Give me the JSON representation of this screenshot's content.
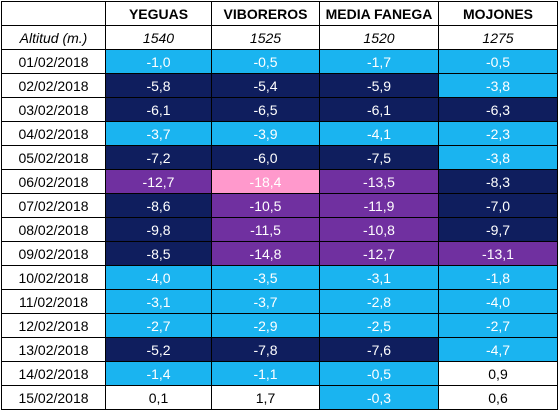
{
  "table": {
    "header": [
      "",
      "YEGUAS",
      "VIBOREROS",
      "MEDIA FANEGA",
      "MOJONES"
    ],
    "altitude": {
      "label": "Altitud (m.)",
      "values": [
        "1540",
        "1525",
        "1520",
        "1275"
      ]
    },
    "legend_colors": {
      "light": "#1ab4f0",
      "navy": "#0f1e5e",
      "purple": "#7030a0",
      "pink": "#ff99cc",
      "white": "#ffffff"
    },
    "rows": [
      {
        "date": "01/02/2018",
        "values": [
          "-1,0",
          "-0,5",
          "-1,7",
          "-0,5"
        ],
        "colors": [
          "light",
          "light",
          "light",
          "light"
        ]
      },
      {
        "date": "02/02/2018",
        "values": [
          "-5,8",
          "-5,4",
          "-5,9",
          "-3,8"
        ],
        "colors": [
          "navy",
          "navy",
          "navy",
          "light"
        ]
      },
      {
        "date": "03/02/2018",
        "values": [
          "-6,1",
          "-6,5",
          "-6,1",
          "-6,3"
        ],
        "colors": [
          "navy",
          "navy",
          "navy",
          "navy"
        ]
      },
      {
        "date": "04/02/2018",
        "values": [
          "-3,7",
          "-3,9",
          "-4,1",
          "-2,3"
        ],
        "colors": [
          "light",
          "light",
          "light",
          "light"
        ]
      },
      {
        "date": "05/02/2018",
        "values": [
          "-7,2",
          "-6,0",
          "-7,5",
          "-3,8"
        ],
        "colors": [
          "navy",
          "navy",
          "navy",
          "light"
        ]
      },
      {
        "date": "06/02/2018",
        "values": [
          "-12,7",
          "-18,4",
          "-13,5",
          "-8,3"
        ],
        "colors": [
          "purple",
          "pink",
          "purple",
          "navy"
        ]
      },
      {
        "date": "07/02/2018",
        "values": [
          "-8,6",
          "-10,5",
          "-11,9",
          "-7,0"
        ],
        "colors": [
          "navy",
          "purple",
          "purple",
          "navy"
        ]
      },
      {
        "date": "08/02/2018",
        "values": [
          "-9,8",
          "-11,5",
          "-10,8",
          "-9,7"
        ],
        "colors": [
          "navy",
          "purple",
          "purple",
          "navy"
        ]
      },
      {
        "date": "09/02/2018",
        "values": [
          "-8,5",
          "-14,8",
          "-12,7",
          "-13,1"
        ],
        "colors": [
          "navy",
          "purple",
          "purple",
          "purple"
        ]
      },
      {
        "date": "10/02/2018",
        "values": [
          "-4,0",
          "-3,5",
          "-3,1",
          "-1,8"
        ],
        "colors": [
          "light",
          "light",
          "light",
          "light"
        ]
      },
      {
        "date": "11/02/2018",
        "values": [
          "-3,1",
          "-3,7",
          "-2,8",
          "-4,0"
        ],
        "colors": [
          "light",
          "light",
          "light",
          "light"
        ]
      },
      {
        "date": "12/02/2018",
        "values": [
          "-2,7",
          "-2,9",
          "-2,5",
          "-2,7"
        ],
        "colors": [
          "light",
          "light",
          "light",
          "light"
        ]
      },
      {
        "date": "13/02/2018",
        "values": [
          "-5,2",
          "-7,8",
          "-7,6",
          "-4,7"
        ],
        "colors": [
          "navy",
          "navy",
          "navy",
          "light"
        ]
      },
      {
        "date": "14/02/2018",
        "values": [
          "-1,4",
          "-1,1",
          "-0,5",
          "0,9"
        ],
        "colors": [
          "light",
          "light",
          "light",
          "white"
        ]
      },
      {
        "date": "15/02/2018",
        "values": [
          "0,1",
          "1,7",
          "-0,3",
          "0,6"
        ],
        "colors": [
          "white",
          "white",
          "light",
          "white"
        ]
      }
    ]
  }
}
